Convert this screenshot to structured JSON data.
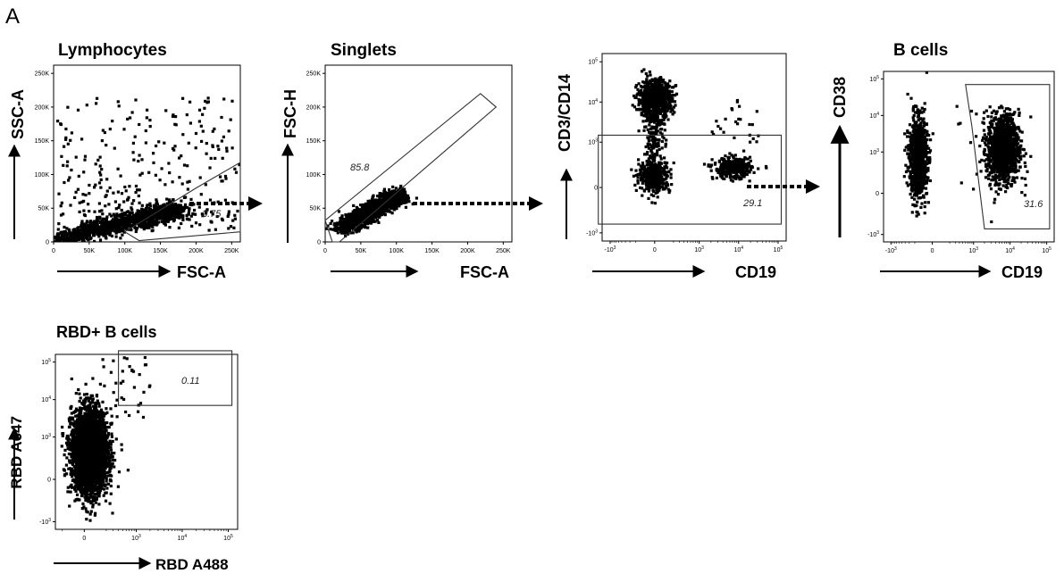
{
  "figure": {
    "panel_letter": "A"
  },
  "chart_data": [
    {
      "type": "scatter",
      "title": "Lymphocytes",
      "xlabel": "FSC-A",
      "ylabel": "SSC-A",
      "x_scale": "linear",
      "y_scale": "linear",
      "xlim": [
        0,
        262144
      ],
      "ylim": [
        0,
        262144
      ],
      "x_ticks": [
        "0",
        "50K",
        "100K",
        "150K",
        "200K",
        "250K"
      ],
      "y_ticks": [
        "0",
        "50K",
        "100K",
        "150K",
        "200K",
        "250K"
      ],
      "gate": {
        "shape": "polygon",
        "label": "3.75",
        "vertices_data": [
          [
            100000,
            15000
          ],
          [
            120000,
            2000
          ],
          [
            262144,
            15000
          ],
          [
            262144,
            118000
          ],
          [
            200000,
            80000
          ]
        ]
      },
      "populations": [
        {
          "kind": "diagonal",
          "points": 1200,
          "x0": 2000,
          "y0": 3000,
          "x1": 175000,
          "y1": 48000,
          "spread": 9000
        },
        {
          "kind": "blob",
          "points": 140,
          "cx": 140000,
          "cy": 42000,
          "sx": 40000,
          "sy": 10000
        },
        {
          "kind": "uniform",
          "points": 260,
          "x0": 5000,
          "x1": 262000,
          "y0": 15000,
          "y1": 215000
        }
      ]
    },
    {
      "type": "scatter",
      "title": "Singlets",
      "xlabel": "FSC-A",
      "ylabel": "FSC-H",
      "x_scale": "linear",
      "y_scale": "linear",
      "xlim": [
        0,
        262144
      ],
      "ylim": [
        0,
        262144
      ],
      "x_ticks": [
        "0",
        "50K",
        "100K",
        "150K",
        "200K",
        "250K"
      ],
      "y_ticks": [
        "0",
        "50K",
        "100K",
        "150K",
        "200K",
        "250K"
      ],
      "gate": {
        "shape": "polygon",
        "label": "85.8",
        "vertices_data": [
          [
            0,
            32000
          ],
          [
            218000,
            220000
          ],
          [
            240000,
            200000
          ],
          [
            20000,
            0
          ],
          [
            10000,
            0
          ]
        ]
      },
      "populations": [
        {
          "kind": "diagonal",
          "points": 1400,
          "x0": 22000,
          "y0": 18000,
          "x1": 105000,
          "y1": 70000,
          "spread": 8000
        }
      ]
    },
    {
      "type": "scatter",
      "title": "",
      "xlabel": "CD19",
      "ylabel": "CD3/CD14",
      "x_scale": "biexponential",
      "y_scale": "biexponential",
      "x_ticks": [
        "-10^3",
        "0",
        "10^3",
        "10^4",
        "10^5"
      ],
      "y_ticks": [
        "-10^3",
        "0",
        "10^3",
        "10^4",
        "10^5"
      ],
      "gate": {
        "shape": "rectangle",
        "label": "29.1",
        "vertices_data": [
          [
            -2000,
            -600
          ],
          [
            120000,
            -600
          ],
          [
            120000,
            1500
          ],
          [
            -2000,
            1500
          ]
        ]
      },
      "populations": [
        {
          "kind": "blob",
          "points": 700,
          "cx": 0,
          "cy": 12000,
          "sx": 0.5,
          "sy": 0.55
        },
        {
          "kind": "blob",
          "points": 380,
          "cx": 0,
          "cy": 100,
          "sx": 0.45,
          "sy": 0.45
        },
        {
          "kind": "blob",
          "points": 340,
          "cx": 7000,
          "cy": 200,
          "sx": 0.55,
          "sy": 0.3
        },
        {
          "kind": "bridge",
          "points": 160,
          "cx": 0,
          "cy": 1500,
          "sx": 0.3,
          "sy": 0.9
        },
        {
          "kind": "uniform",
          "points": 25,
          "x0": 2000,
          "x1": 40000,
          "y0": 1000,
          "y1": 15000
        }
      ]
    },
    {
      "type": "scatter",
      "title": "B cells",
      "xlabel": "CD19",
      "ylabel": "CD38",
      "x_scale": "biexponential",
      "y_scale": "biexponential",
      "x_ticks": [
        "-10^3",
        "0",
        "10^3",
        "10^4",
        "10^5"
      ],
      "y_ticks": [
        "-10^3",
        "0",
        "10^3",
        "10^4",
        "10^5"
      ],
      "gate": {
        "shape": "polygon",
        "label": "31.6",
        "vertices_data": [
          [
            600,
            70000
          ],
          [
            120000,
            70000
          ],
          [
            120000,
            -700
          ],
          [
            2000,
            -700
          ],
          [
            900,
            5000
          ]
        ]
      },
      "populations": [
        {
          "kind": "blob",
          "points": 950,
          "cx": -150,
          "cy": 700,
          "sx": 0.28,
          "sy": 1.25
        },
        {
          "kind": "blob",
          "points": 1150,
          "cx": 6500,
          "cy": 1200,
          "sx": 0.5,
          "sy": 1.05
        },
        {
          "kind": "uniform",
          "points": 30,
          "x0": 300,
          "x1": 40000,
          "y0": -500,
          "y1": 20000
        }
      ]
    },
    {
      "type": "scatter",
      "title": "RBD+ B cells",
      "xlabel": "RBD A488",
      "ylabel": "RBD A647",
      "x_scale": "biexponential",
      "y_scale": "biexponential",
      "x_ticks": [
        "0",
        "10^3",
        "10^4",
        "10^5"
      ],
      "y_ticks": [
        "-10^3",
        "0",
        "10^3",
        "10^4",
        "10^5"
      ],
      "gate": {
        "shape": "rectangle",
        "label": "0.11",
        "vertices_data": [
          [
            400,
            7000
          ],
          [
            120000,
            7000
          ],
          [
            120000,
            200000
          ],
          [
            400,
            200000
          ]
        ]
      },
      "populations": [
        {
          "kind": "blob",
          "points": 3200,
          "cx": 40,
          "cy": 400,
          "sx": 0.45,
          "sy": 1.25
        },
        {
          "kind": "uniform",
          "points": 35,
          "x0": 150,
          "x1": 2000,
          "y0": 3000,
          "y1": 150000
        }
      ]
    }
  ]
}
